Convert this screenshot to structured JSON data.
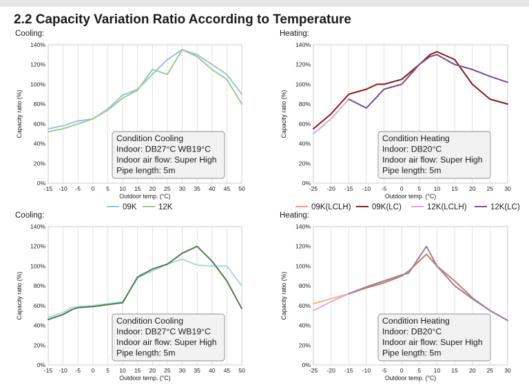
{
  "heading": "2.2 Capacity Variation Ratio According to Temperature",
  "chart_data": [
    {
      "type": "line",
      "panel_label": "Cooling:",
      "xlabel": "Outdoor temp. (°C)",
      "ylabel": "Capacity ratio (%)",
      "x_ticks": [
        "-15",
        "-10",
        "-5",
        "0",
        "5",
        "10",
        "15",
        "20",
        "25",
        "30",
        "35",
        "40",
        "45",
        "50"
      ],
      "y_ticks": [
        "0%",
        "20%",
        "40%",
        "60%",
        "80%",
        "100%",
        "120%",
        "140%"
      ],
      "xlim": [
        -15,
        50
      ],
      "ylim": [
        0,
        140
      ],
      "grid": "vertical",
      "legend": "bottom",
      "legend_entries": [
        "09K",
        "12K"
      ],
      "condition": [
        "Condition Cooling",
        "Indoor: DB27°C WB19°C",
        "Indoor air flow: Super High",
        "Pipe length: 5m"
      ],
      "series": [
        {
          "name": "09K",
          "color": "#9dbfe0",
          "x": [
            -15,
            -10,
            -5,
            0,
            5,
            10,
            15,
            20,
            25,
            30,
            35,
            40,
            45,
            50
          ],
          "y": [
            55,
            58,
            63,
            65,
            75,
            89,
            95,
            110,
            125,
            135,
            130,
            120,
            110,
            90
          ]
        },
        {
          "name": "12K",
          "color": "#98cc8f",
          "x": [
            -15,
            -10,
            -5,
            0,
            5,
            10,
            15,
            20,
            25,
            30,
            35,
            40,
            45,
            50
          ],
          "y": [
            52,
            55,
            60,
            65,
            74,
            86,
            94,
            115,
            110,
            135,
            128,
            115,
            105,
            80
          ]
        }
      ]
    },
    {
      "type": "line",
      "panel_label": "Heating:",
      "xlabel": "Outdoor temp. (°C)",
      "ylabel": "Capacity ratio (%)",
      "x_ticks": [
        "-25",
        "-20",
        "-15",
        "-10",
        "-5",
        "0",
        "5",
        "10",
        "15",
        "20",
        "25",
        "30"
      ],
      "y_ticks": [
        "0%",
        "20%",
        "40%",
        "60%",
        "80%",
        "100%",
        "120%",
        "140%"
      ],
      "xlim": [
        -25,
        30
      ],
      "ylim": [
        0,
        140
      ],
      "grid": "vertical",
      "legend": "bottom",
      "legend_entries": [
        "09K(LCLH)",
        "09K(LC)",
        "12K(LCLH)",
        "12K(LC)"
      ],
      "condition": [
        "Condition Heating",
        "Indoor: DB20°C",
        "Indoor air flow: Super High",
        "Pipe length: 5m"
      ],
      "series": [
        {
          "name": "09K(LCLH)",
          "color": "#e59a80",
          "x": [
            -25,
            -20,
            -15,
            -10,
            -7,
            -5,
            0,
            5,
            8,
            10,
            15,
            20,
            25,
            30
          ],
          "y": [
            55,
            70,
            90,
            95,
            100,
            100,
            105,
            120,
            130,
            133,
            125,
            100,
            85,
            80
          ]
        },
        {
          "name": "09K(LC)",
          "color": "#8b1c1c",
          "x": [
            -25,
            -20,
            -15,
            -10,
            -7,
            -5,
            0,
            5,
            8,
            10,
            15,
            20,
            25,
            30
          ],
          "y": [
            55,
            70,
            90,
            95,
            100,
            100,
            105,
            120,
            130,
            133,
            125,
            100,
            85,
            80
          ]
        },
        {
          "name": "12K(LCLH)",
          "color": "#dca9db",
          "x": [
            -25,
            -20,
            -15,
            -10,
            -5,
            0,
            5,
            8,
            10,
            15,
            20,
            25,
            30
          ],
          "y": [
            50,
            65,
            85,
            76,
            95,
            100,
            120,
            128,
            130,
            120,
            115,
            108,
            102
          ]
        },
        {
          "name": "12K(LC)",
          "color": "#7a4f8a",
          "x": [
            -15,
            -10,
            -5,
            0,
            5,
            8,
            10,
            15,
            20,
            25,
            30
          ],
          "y": [
            85,
            76,
            95,
            100,
            120,
            128,
            130,
            120,
            115,
            108,
            102
          ]
        }
      ]
    },
    {
      "type": "line",
      "panel_label": "Cooling:",
      "xlabel": "Outdoor temp. (°C)",
      "ylabel": "Capacity ratio (%)",
      "x_ticks": [
        "-15",
        "-10",
        "-5",
        "0",
        "5",
        "10",
        "15",
        "20",
        "25",
        "30",
        "35",
        "40",
        "45",
        "50"
      ],
      "y_ticks": [
        "0%",
        "20%",
        "40%",
        "60%",
        "80%",
        "100%",
        "120%",
        "140%"
      ],
      "xlim": [
        -15,
        50
      ],
      "ylim": [
        0,
        140
      ],
      "grid": "vertical",
      "legend": "none",
      "condition": [
        "Condition Cooling",
        "Indoor: DB27°C WB19°C",
        "Indoor air flow: Super High",
        "Pipe length: 5m"
      ],
      "series": [
        {
          "color": "#a6d8e8",
          "x": [
            -15,
            -10,
            -7,
            -5,
            0,
            5,
            10,
            15,
            20,
            25,
            30,
            35,
            40,
            45,
            50
          ],
          "y": [
            48,
            53,
            58,
            59,
            60,
            62,
            64,
            88,
            95,
            102,
            107,
            101,
            100,
            100,
            80
          ]
        },
        {
          "color": "#4f7a48",
          "x": [
            -15,
            -10,
            -7,
            -5,
            0,
            5,
            10,
            15,
            20,
            25,
            30,
            35,
            40,
            45,
            50
          ],
          "y": [
            46,
            51,
            56,
            58,
            59,
            61,
            63,
            89,
            97,
            102,
            113,
            120,
            105,
            85,
            57
          ]
        }
      ]
    },
    {
      "type": "line",
      "panel_label": "Heating:",
      "xlabel": "Outdoor temp. (°C)",
      "ylabel": "Capacity ratio (%)",
      "x_ticks": [
        "-25",
        "-20",
        "-15",
        "-10",
        "-5",
        "0",
        "5",
        "10",
        "15",
        "20",
        "25",
        "30"
      ],
      "y_ticks": [
        "0%",
        "20%",
        "40%",
        "60%",
        "80%",
        "100%",
        "120%",
        "140%"
      ],
      "xlim": [
        -25,
        30
      ],
      "ylim": [
        0,
        140
      ],
      "grid": "vertical",
      "legend": "none",
      "condition": [
        "Condition Heating",
        "Indoor: DB20°C",
        "Indoor air flow: Super High",
        "Pipe length: 5m"
      ],
      "series": [
        {
          "color": "#f2b47a",
          "x": [
            -25,
            -20,
            -15,
            -10,
            -5,
            0,
            2,
            7,
            10,
            15,
            20,
            25,
            30
          ],
          "y": [
            62,
            67,
            72,
            78,
            83,
            90,
            95,
            112,
            100,
            85,
            68,
            55,
            45
          ]
        },
        {
          "color": "#dca9db",
          "x": [
            -25,
            -20,
            -15,
            -10,
            -5,
            0,
            2,
            7,
            10,
            15,
            20,
            25,
            30
          ],
          "y": [
            55,
            64,
            72,
            79,
            85,
            91,
            93,
            120,
            100,
            80,
            67,
            55,
            45
          ]
        },
        {
          "color": "#c7845a",
          "x": [
            -15,
            -10,
            -5,
            0,
            2,
            7,
            10,
            15,
            20,
            25,
            30
          ],
          "y": [
            72,
            78,
            83,
            90,
            95,
            112,
            100,
            85,
            68,
            55,
            45
          ]
        },
        {
          "color": "#9b7fa6",
          "x": [
            -15,
            -10,
            -5,
            0,
            2,
            7,
            10,
            15,
            20,
            25,
            30
          ],
          "y": [
            72,
            79,
            85,
            91,
            93,
            120,
            100,
            80,
            67,
            55,
            45
          ]
        }
      ]
    }
  ]
}
